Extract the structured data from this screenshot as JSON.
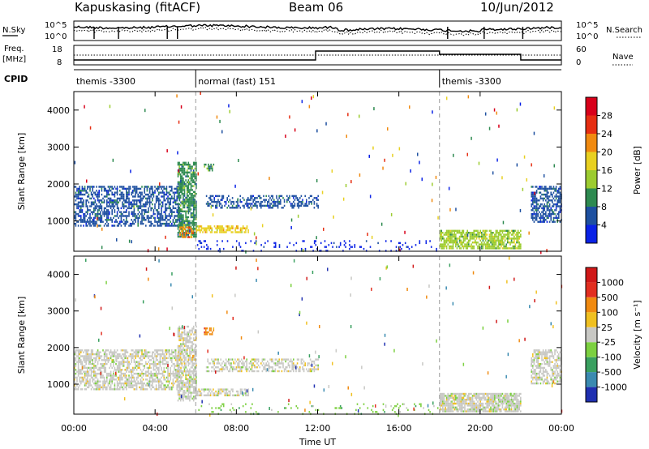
{
  "header": {
    "station": "Kapuskasing (fitACF)",
    "beam": "Beam 06",
    "date": "10/Jun/2012"
  },
  "strips": {
    "nsky_label": "N.Sky",
    "nsearch_label": "N.Search",
    "noise_ticks_left": [
      "10^5",
      "10^0"
    ],
    "noise_ticks_right": [
      "10^5",
      "10^0"
    ],
    "freq_label_top": "Freq.",
    "freq_label_bottom": "[MHz]",
    "freq_ticks": [
      "18",
      "8"
    ],
    "nave_ticks": [
      "60",
      "0"
    ],
    "nave_label": "Nave",
    "cpid_label": "CPID",
    "cpid_segments": [
      {
        "start_h": 0,
        "end_h": 6,
        "label": "themis -3300"
      },
      {
        "start_h": 6,
        "end_h": 18,
        "label": "normal (fast) 151"
      },
      {
        "start_h": 18,
        "end_h": 24,
        "label": "themis -3300"
      }
    ]
  },
  "chart_data": [
    {
      "type": "heatmap",
      "title": "",
      "parameter": "Power",
      "ylabel": "Slant Range [km]",
      "xlabel": "",
      "xlim_hours": [
        0,
        24
      ],
      "ylim": [
        180,
        4500
      ],
      "yticks": [
        1000,
        2000,
        3000,
        4000
      ],
      "colorbar": {
        "label": "Power [dB]",
        "ticks": [
          "4",
          "8",
          "12",
          "16",
          "20",
          "24",
          "28"
        ],
        "colors": [
          "#0a22e6",
          "#1e50a0",
          "#2e8a50",
          "#9ccc30",
          "#e8d020",
          "#f08a10",
          "#e62e12",
          "#d8001a"
        ]
      },
      "echo_regions": [
        {
          "t0": 0.0,
          "t1": 5.3,
          "r0": 850,
          "r1": 1950,
          "level": 1,
          "density": 0.55
        },
        {
          "t0": 5.1,
          "t1": 6.0,
          "r0": 550,
          "r1": 2600,
          "level": 2,
          "density": 0.7
        },
        {
          "t0": 5.2,
          "t1": 5.9,
          "r0": 560,
          "r1": 850,
          "level": 5,
          "density": 0.65
        },
        {
          "t0": 6.0,
          "t1": 8.6,
          "r0": 700,
          "r1": 880,
          "level": 4,
          "density": 0.6
        },
        {
          "t0": 6.5,
          "t1": 12.0,
          "r0": 1380,
          "r1": 1700,
          "level": 1,
          "density": 0.45
        },
        {
          "t0": 6.4,
          "t1": 6.9,
          "r0": 2350,
          "r1": 2550,
          "level": 2,
          "density": 0.6
        },
        {
          "t0": 6.0,
          "t1": 18.0,
          "r0": 200,
          "r1": 480,
          "level": 0,
          "density": 0.1
        },
        {
          "t0": 18.0,
          "t1": 22.0,
          "r0": 260,
          "r1": 760,
          "level": 3,
          "density": 0.75
        },
        {
          "t0": 22.5,
          "t1": 24.0,
          "r0": 1000,
          "r1": 1950,
          "level": 1,
          "density": 0.6
        }
      ]
    },
    {
      "type": "heatmap",
      "title": "",
      "parameter": "Velocity",
      "ylabel": "Slant Range [km]",
      "xlabel": "Time UT",
      "xlim_hours": [
        0,
        24
      ],
      "xticks": [
        "00:00",
        "04:00",
        "08:00",
        "12:00",
        "16:00",
        "20:00",
        "00:00"
      ],
      "ylim": [
        180,
        4500
      ],
      "yticks": [
        1000,
        2000,
        3000,
        4000
      ],
      "colorbar": {
        "label": "Velocity [m s⁻¹]",
        "ticks": [
          "1000",
          "500",
          "100",
          "25",
          "-25",
          "-100",
          "-500",
          "-1000"
        ],
        "colors": [
          "#1f2fb0",
          "#3a8ab0",
          "#3aa060",
          "#7cd040",
          "#c8c8c4",
          "#f0c020",
          "#f08a10",
          "#e22e20",
          "#d01818"
        ]
      },
      "echo_regions": [
        {
          "t0": 0.0,
          "t1": 5.3,
          "r0": 850,
          "r1": 1950,
          "level": 4,
          "density": 0.6
        },
        {
          "t0": 5.1,
          "t1": 6.0,
          "r0": 550,
          "r1": 2600,
          "level": 4,
          "density": 0.7
        },
        {
          "t0": 6.0,
          "t1": 8.6,
          "r0": 700,
          "r1": 880,
          "level": 4,
          "density": 0.6
        },
        {
          "t0": 6.5,
          "t1": 12.0,
          "r0": 1380,
          "r1": 1700,
          "level": 4,
          "density": 0.5
        },
        {
          "t0": 6.4,
          "t1": 6.9,
          "r0": 2350,
          "r1": 2550,
          "level": 6,
          "density": 0.6
        },
        {
          "t0": 6.0,
          "t1": 18.0,
          "r0": 200,
          "r1": 480,
          "level": 3,
          "density": 0.1
        },
        {
          "t0": 18.0,
          "t1": 22.0,
          "r0": 260,
          "r1": 760,
          "level": 4,
          "density": 0.8
        },
        {
          "t0": 22.5,
          "t1": 24.0,
          "r0": 1000,
          "r1": 1950,
          "level": 4,
          "density": 0.6
        }
      ]
    }
  ]
}
